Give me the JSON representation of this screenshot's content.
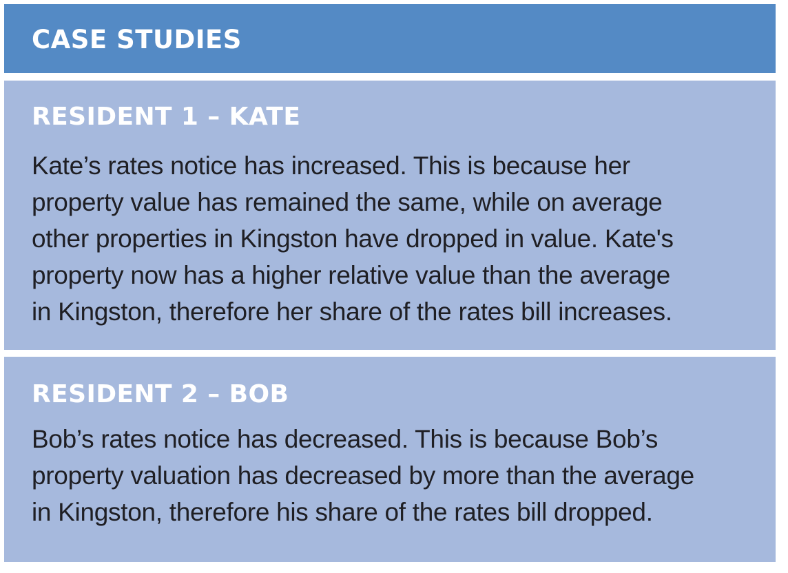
{
  "header": {
    "title": "CASE STUDIES"
  },
  "residents": [
    {
      "heading": "RESIDENT 1 – KATE",
      "lines": [
        "Kate’s rates notice has increased. This is because her",
        "property value has remained the same, while on average",
        "other properties in Kingston have dropped in value. Kate's",
        "property now has a higher relative value than the average",
        "in Kingston, therefore her share of the rates bill increases."
      ]
    },
    {
      "heading": "RESIDENT 2 – BOB",
      "lines": [
        "Bob’s rates notice has decreased. This is because Bob’s",
        "property valuation has decreased by more than the average",
        "in Kingston, therefore his share of the rates bill dropped."
      ]
    }
  ],
  "colors": {
    "header_bg": "#548ac5",
    "panel_bg": "#a6b9dd",
    "heading_text": "#ffffff",
    "body_text": "#1f1f24"
  }
}
